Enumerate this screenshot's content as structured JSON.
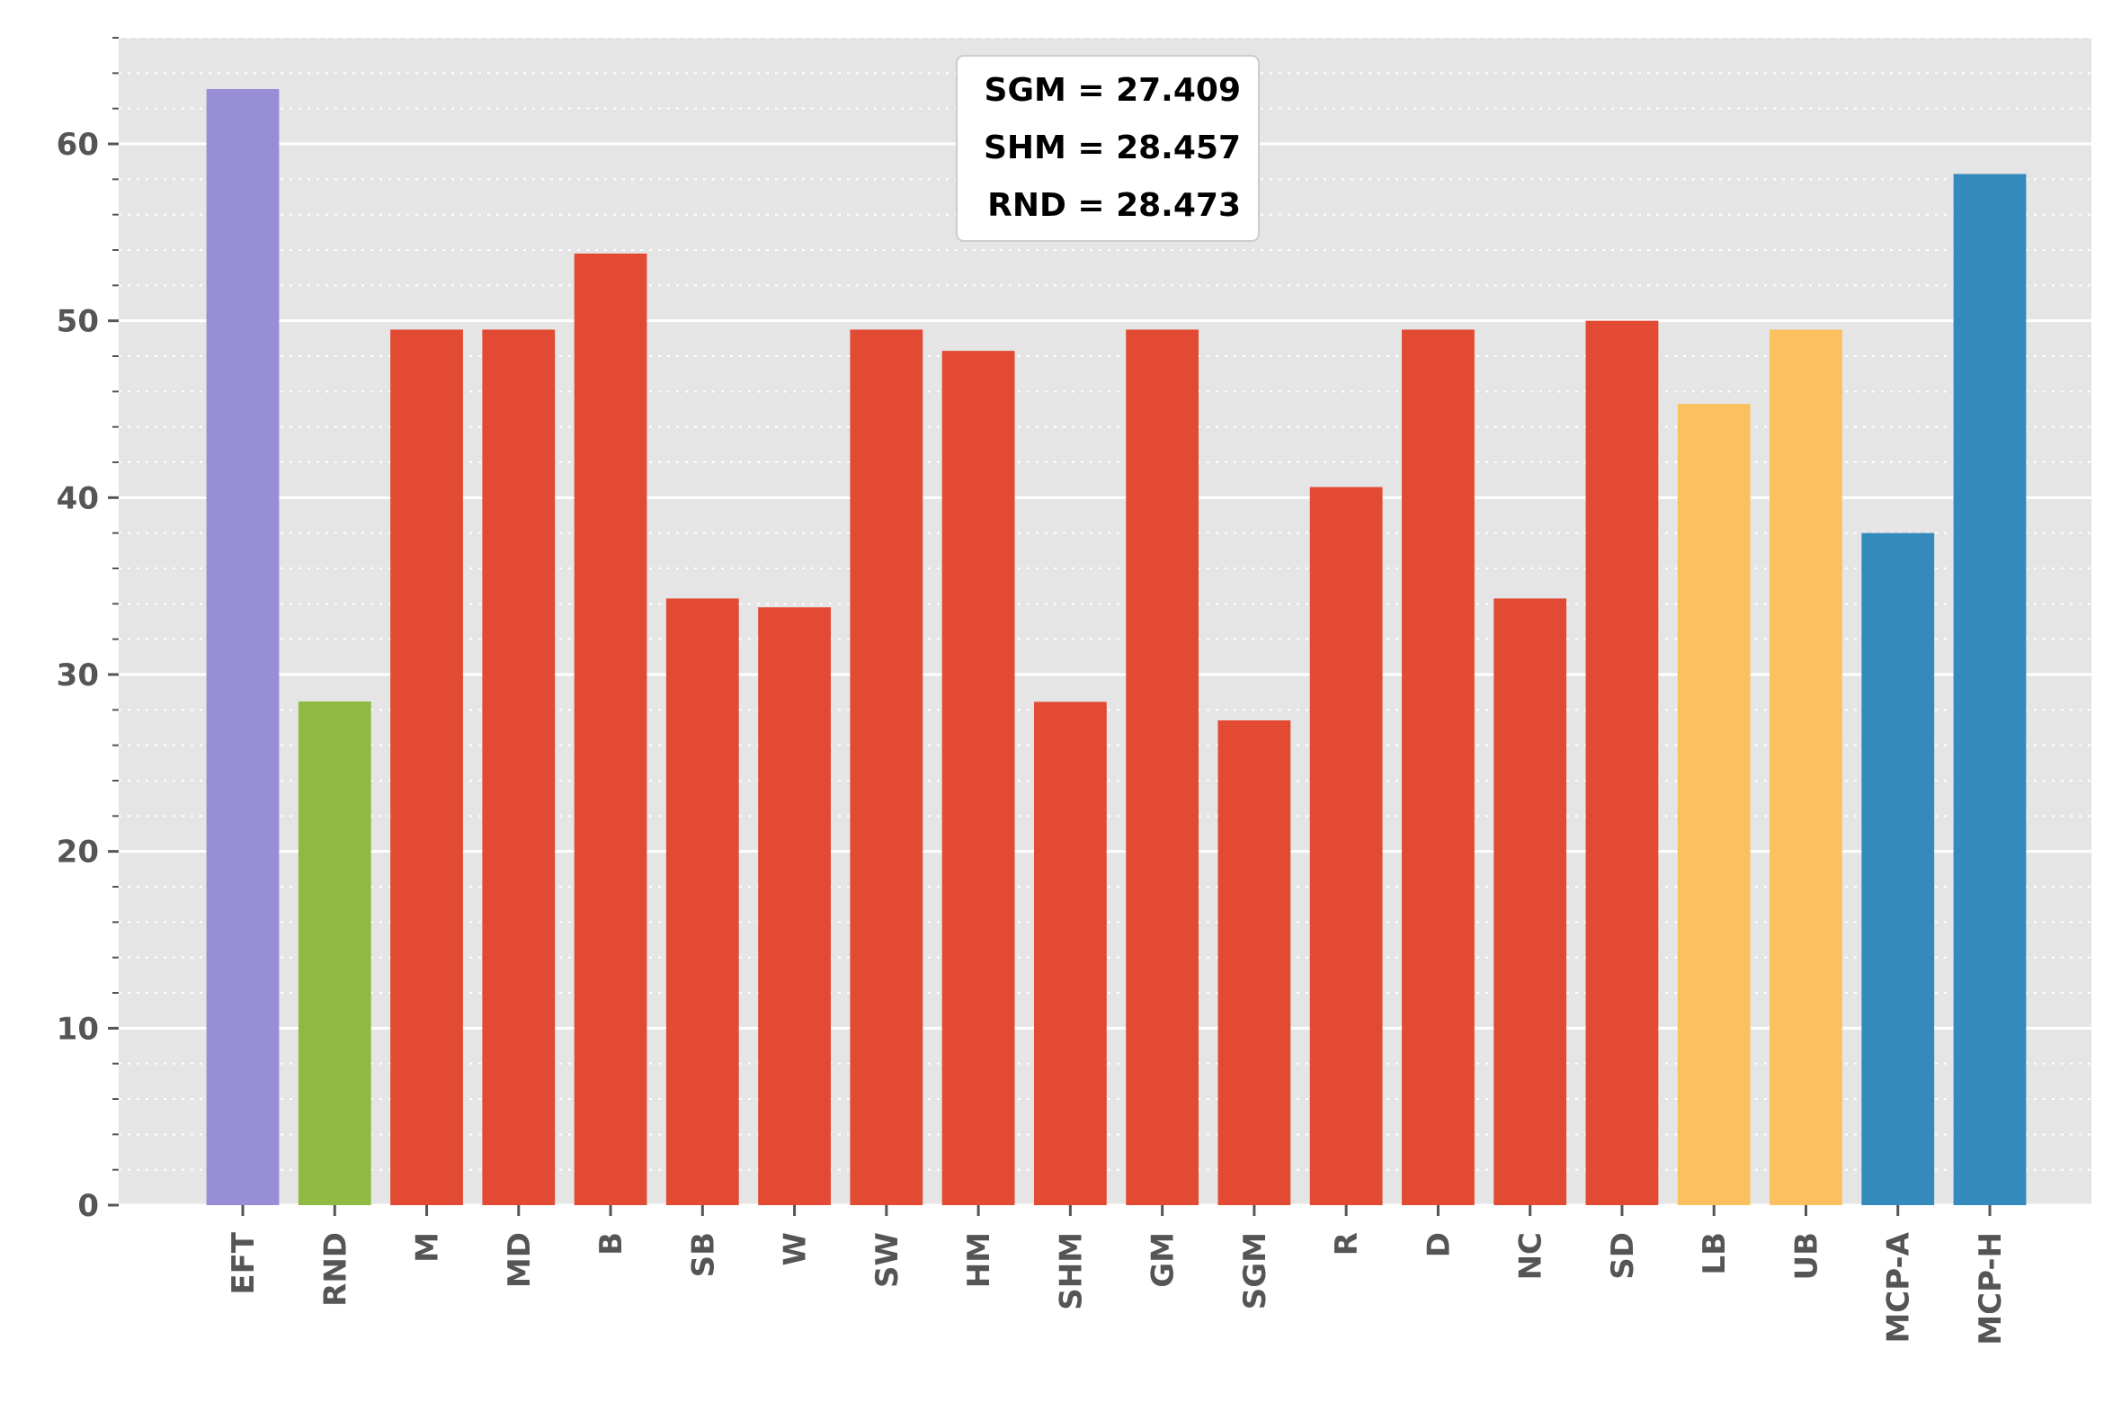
{
  "chart_data": {
    "type": "bar",
    "title": "",
    "xlabel": "",
    "ylabel": "",
    "ylim": [
      0,
      66
    ],
    "grid": true,
    "legend": "none",
    "categories": [
      "EFT",
      "RND",
      "M",
      "MD",
      "B",
      "SB",
      "W",
      "SW",
      "HM",
      "SHM",
      "GM",
      "SGM",
      "R",
      "D",
      "NC",
      "SD",
      "LB",
      "UB",
      "MCP-A",
      "MCP-H"
    ],
    "values": [
      63.1,
      28.473,
      49.5,
      49.5,
      53.8,
      34.3,
      33.8,
      49.5,
      48.3,
      28.457,
      49.5,
      27.409,
      40.6,
      49.5,
      34.3,
      50.0,
      45.3,
      49.5,
      38.0,
      58.3
    ],
    "colors": [
      "#988ED5",
      "#8EBA42",
      "#E24A33",
      "#E24A33",
      "#E24A33",
      "#E24A33",
      "#E24A33",
      "#E24A33",
      "#E24A33",
      "#E24A33",
      "#E24A33",
      "#E24A33",
      "#E24A33",
      "#E24A33",
      "#E24A33",
      "#E24A33",
      "#FBC15E",
      "#FBC15E",
      "#348ABD",
      "#348ABD"
    ],
    "yticks": [
      0,
      10,
      20,
      30,
      40,
      50,
      60
    ],
    "annotation": {
      "lines": [
        "SGM = 27.409",
        "SHM = 28.457",
        "RND = 28.473"
      ],
      "placement": "top-center"
    }
  }
}
